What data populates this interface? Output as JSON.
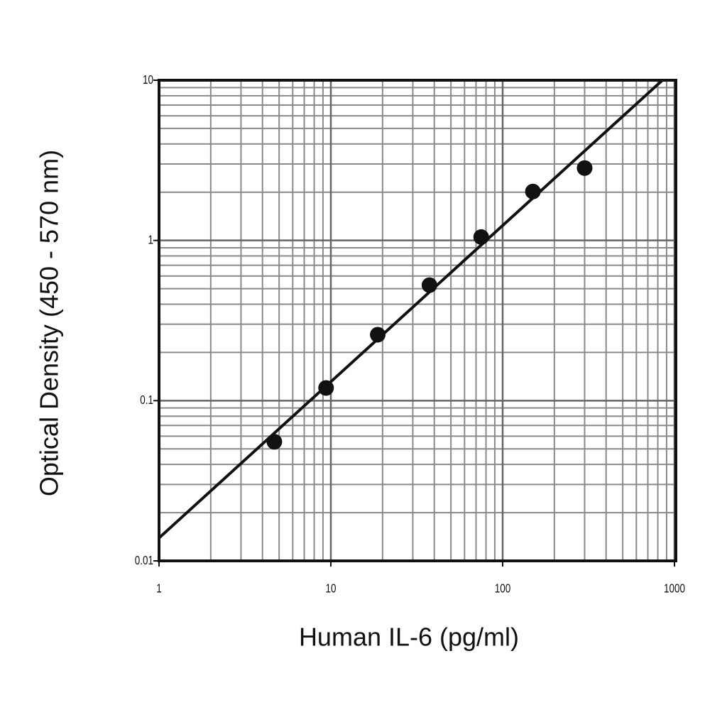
{
  "chart_data": {
    "type": "scatter",
    "x_label": "Human IL-6 (pg/ml)",
    "y_label": "Optical Density (450 - 570 nm)",
    "xscale": "log",
    "yscale": "log",
    "xlim": [
      1,
      1000
    ],
    "ylim": [
      0.01,
      10
    ],
    "xticks": [
      1,
      10,
      100,
      1000
    ],
    "yticks": [
      0.01,
      0.1,
      1,
      10
    ],
    "grid": true,
    "minor_grid": true,
    "series": [
      {
        "type": "scatter",
        "color": "#111111",
        "x": [
          4.69,
          9.38,
          18.75,
          37.5,
          75,
          150,
          300
        ],
        "values": [
          0.0554,
          0.12,
          0.258,
          0.526,
          1.05,
          2.02,
          2.83
        ]
      },
      {
        "type": "line",
        "color": "#111111",
        "x": [
          1,
          851
        ],
        "values": [
          0.0139,
          10
        ]
      }
    ]
  }
}
